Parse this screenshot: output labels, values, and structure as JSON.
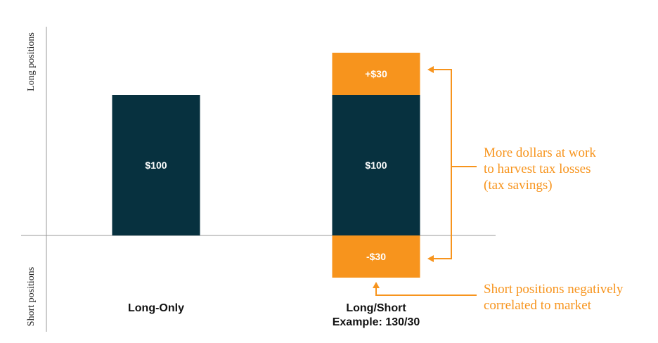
{
  "chart_data": {
    "type": "bar",
    "stacked": true,
    "categories": [
      "Long-Only",
      "Long/Short"
    ],
    "category_sublabels": [
      "",
      "Example: 130/30"
    ],
    "series": [
      {
        "values": [
          100,
          100
        ],
        "labels": [
          "$100",
          "$100"
        ],
        "color": "#07313f"
      },
      {
        "values": [
          0,
          30
        ],
        "labels": [
          "",
          "+$30"
        ],
        "color": "#f7941d"
      },
      {
        "values": [
          0,
          -30
        ],
        "labels": [
          "",
          "-$30"
        ],
        "color": "#f7941d"
      }
    ],
    "ylabel_positive": "Long positions",
    "ylabel_negative": "Short positions",
    "ylim": [
      -30,
      130
    ],
    "annotations": [
      {
        "lines": [
          "More dollars at work",
          "to harvest tax losses",
          "(tax savings)"
        ],
        "color": "#f7941d"
      },
      {
        "lines": [
          "Short positions negatively",
          "correlated to market"
        ],
        "color": "#f7941d"
      }
    ]
  }
}
